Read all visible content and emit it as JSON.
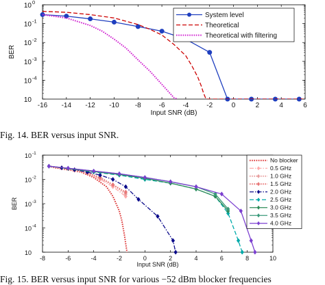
{
  "captions": {
    "fig14": "Fig. 14.   BER versus input SNR.",
    "fig15": "Fig. 15.   BER versus input SNR for various −52 dBm blocker frequencies"
  },
  "chart_data": [
    {
      "type": "line",
      "xlabel": "Input SNR (dB)",
      "ylabel": "BER",
      "xlim": [
        -16,
        6
      ],
      "ylim_exp": [
        -5,
        0
      ],
      "log_y": true,
      "grid": false,
      "legend_position": "top-right",
      "xticks": [
        "-16",
        "-14",
        "-12",
        "-10",
        "-8",
        "-6",
        "-4",
        "-2",
        "0",
        "2",
        "4",
        "6"
      ],
      "yticks": [
        "10",
        "10",
        "10",
        "10",
        "10",
        "10"
      ],
      "ytick_exps": [
        "0",
        "-1",
        "-2",
        "-3",
        "-4",
        ""
      ],
      "series": [
        {
          "name": "System level",
          "color": "#1f3fbf",
          "style": "solid",
          "marker": "circle",
          "x": [
            -16,
            -14,
            -12,
            -10,
            -8,
            -6,
            -4,
            -2,
            -0.5,
            1.5,
            3.5,
            5.5
          ],
          "y": [
            0.3,
            0.25,
            0.18,
            0.12,
            0.07,
            0.04,
            0.015,
            0.003,
            1e-05,
            1e-05,
            1e-05,
            1e-05
          ]
        },
        {
          "name": "Theoretical",
          "color": "#cc0000",
          "style": "dashed",
          "marker": "none",
          "x": [
            -16,
            -14,
            -12,
            -10,
            -8,
            -7,
            -6,
            -5,
            -4,
            -3.5,
            -3,
            -2.7,
            -2.5,
            -2.3,
            -2.2,
            6
          ],
          "y": [
            0.45,
            0.4,
            0.3,
            0.2,
            0.09,
            0.05,
            0.025,
            0.008,
            0.002,
            0.0006,
            0.00015,
            5e-05,
            2e-05,
            1e-05,
            1e-05,
            1e-05
          ]
        },
        {
          "name": "Theoretical with filtering",
          "color": "#d020d0",
          "style": "dotted",
          "marker": "none",
          "x": [
            -16,
            -14,
            -12,
            -11,
            -10,
            -9,
            -8,
            -7,
            -6,
            -5,
            -4.7
          ],
          "y": [
            0.3,
            0.2,
            0.08,
            0.04,
            0.015,
            0.005,
            0.0012,
            0.0003,
            6e-05,
            1.2e-05,
            1e-05
          ]
        }
      ]
    },
    {
      "type": "line",
      "xlabel": "Input SNR (dB)",
      "ylabel": "BER",
      "xlim": [
        -8,
        10
      ],
      "ylim_exp": [
        -5,
        -1
      ],
      "log_y": true,
      "grid": false,
      "legend_position": "top-right",
      "xticks": [
        "-8",
        "-6",
        "-4",
        "-2",
        "0",
        "2",
        "4",
        "6",
        "8",
        "10"
      ],
      "yticks": [
        "10",
        "10",
        "10",
        "10",
        "10"
      ],
      "ytick_exps": [
        "-1",
        "-2",
        "-3",
        "-4",
        ""
      ],
      "series": [
        {
          "name": "No blocker",
          "color": "#dd3333",
          "style": "dotted",
          "marker": "none",
          "x": [
            -7.5,
            -7,
            -6,
            -5,
            -4,
            -3,
            -2.5,
            -2,
            -1.8,
            -1.6,
            -1.4
          ],
          "y": [
            0.035,
            0.03,
            0.025,
            0.02,
            0.012,
            0.005,
            0.002,
            0.0005,
            0.0002,
            5e-05,
            1e-05
          ]
        },
        {
          "name": "0.5 GHz",
          "color": "#ffaaaa",
          "style": "dashdot",
          "marker": "diamond",
          "x": [
            -7.5,
            -6.5,
            -5.5,
            -4.5,
            -3.5,
            -2.5,
            -1.5
          ],
          "y": [
            0.035,
            0.03,
            0.024,
            0.018,
            0.01,
            0.005,
            0.002
          ]
        },
        {
          "name": "1.0 GHz",
          "color": "#e8a0a0",
          "style": "dotted",
          "marker": "diamond",
          "x": [
            -7.5,
            -6.5,
            -5.5,
            -4.5,
            -3.5,
            -2.5,
            -1.5
          ],
          "y": [
            0.035,
            0.03,
            0.024,
            0.018,
            0.011,
            0.006,
            0.0025
          ]
        },
        {
          "name": "1.5 GHz",
          "color": "#e87878",
          "style": "dotted",
          "marker": "diamond",
          "x": [
            -7.5,
            -6.5,
            -5.5,
            -4.5,
            -3.5,
            -2.5,
            -1.5
          ],
          "y": [
            0.035,
            0.03,
            0.025,
            0.019,
            0.012,
            0.006,
            0.003
          ]
        },
        {
          "name": "2.0 GHz",
          "color": "#0a0a8a",
          "style": "dashdot",
          "marker": "diamond",
          "x": [
            -7.5,
            -6.5,
            -5.5,
            -4.5,
            -3.5,
            -2.5,
            -1.5,
            -0.5,
            1,
            2.2,
            2.4
          ],
          "y": [
            0.035,
            0.03,
            0.025,
            0.02,
            0.015,
            0.01,
            0.005,
            0.0015,
            0.0003,
            3e-05,
            1e-05
          ]
        },
        {
          "name": "2.5 GHz",
          "color": "#00aaaa",
          "style": "dashed",
          "marker": "diamond",
          "x": [
            -7.5,
            -6,
            -4,
            -2,
            0,
            2,
            4,
            5.5,
            6.5,
            7.3,
            7.6
          ],
          "y": [
            0.035,
            0.028,
            0.02,
            0.015,
            0.01,
            0.007,
            0.004,
            0.002,
            0.0004,
            3e-05,
            1e-05
          ]
        },
        {
          "name": "3.0 GHz",
          "color": "#2e8b57",
          "style": "solid",
          "marker": "diamond",
          "x": [
            -7.5,
            -6,
            -4,
            -2,
            0,
            2,
            4,
            5.5,
            6.5
          ],
          "y": [
            0.035,
            0.028,
            0.021,
            0.016,
            0.011,
            0.007,
            0.004,
            0.002,
            0.0005
          ]
        },
        {
          "name": "3.5 GHz",
          "color": "#3a9a7a",
          "style": "solid",
          "marker": "diamond",
          "x": [
            -7.5,
            -6,
            -4,
            -2,
            0,
            2,
            4,
            5.5,
            6.5
          ],
          "y": [
            0.035,
            0.029,
            0.022,
            0.017,
            0.012,
            0.008,
            0.005,
            0.0025,
            0.0006
          ]
        },
        {
          "name": "4.0 GHz",
          "color": "#7b3fd0",
          "style": "solid",
          "marker": "diamond",
          "x": [
            -7.5,
            -6,
            -4,
            -2,
            0,
            2,
            4,
            6,
            7.5,
            8.3,
            8.6
          ],
          "y": [
            0.035,
            0.029,
            0.022,
            0.017,
            0.012,
            0.008,
            0.005,
            0.0025,
            0.0005,
            3e-05,
            1e-05
          ]
        }
      ]
    }
  ]
}
